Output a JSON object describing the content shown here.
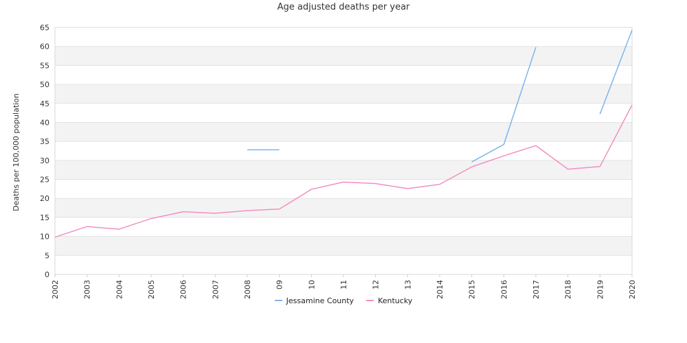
{
  "chart_data": {
    "type": "line",
    "title": "Age adjusted deaths per year",
    "xlabel": "",
    "ylabel": "Deaths per 100,000 population",
    "ylim": [
      0,
      65
    ],
    "yticks": [
      0,
      5,
      10,
      15,
      20,
      25,
      30,
      35,
      40,
      45,
      50,
      55,
      60,
      65
    ],
    "categories": [
      "2002",
      "2003",
      "2004",
      "2005",
      "2006",
      "2007",
      "2008",
      "09",
      "10",
      "11",
      "12",
      "13",
      "2014",
      "2015",
      "2016",
      "2017",
      "2018",
      "2019",
      "2020"
    ],
    "grid": true,
    "legend_position": "bottom",
    "series": [
      {
        "name": "Jessamine County",
        "color": "#7cb5ec",
        "values": [
          null,
          null,
          null,
          null,
          null,
          null,
          32.8,
          32.8,
          null,
          null,
          null,
          null,
          null,
          29.6,
          34.2,
          59.8,
          null,
          42.2,
          64.3
        ]
      },
      {
        "name": "Kentucky",
        "color": "#f28fc2",
        "values": [
          9.8,
          12.6,
          11.9,
          14.7,
          16.5,
          16.1,
          16.8,
          17.2,
          22.4,
          24.3,
          23.9,
          22.6,
          23.7,
          28.3,
          31.2,
          33.9,
          27.7,
          28.4,
          44.6
        ]
      }
    ]
  }
}
